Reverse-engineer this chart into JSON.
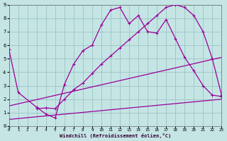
{
  "background_color": "#c5e5e5",
  "grid_color": "#a0c8c8",
  "line_color": "#990099",
  "xlabel": "Windchill (Refroidissement éolien,°C)",
  "xlim": [
    0,
    23
  ],
  "ylim": [
    0,
    9
  ],
  "xticks": [
    0,
    1,
    2,
    3,
    4,
    5,
    6,
    7,
    8,
    9,
    10,
    11,
    12,
    13,
    14,
    15,
    16,
    17,
    18,
    19,
    20,
    21,
    22,
    23
  ],
  "yticks": [
    0,
    1,
    2,
    3,
    4,
    5,
    6,
    7,
    8,
    9
  ],
  "series1_x": [
    0,
    1,
    3,
    4,
    5,
    6,
    7,
    8,
    9,
    10,
    11,
    12,
    13,
    14,
    15,
    16,
    17,
    18,
    19,
    20,
    21,
    22,
    23
  ],
  "series1_y": [
    5.7,
    2.5,
    1.4,
    0.9,
    0.6,
    3.1,
    4.6,
    5.6,
    6.0,
    7.5,
    8.6,
    8.8,
    7.6,
    8.2,
    7.0,
    6.9,
    7.9,
    6.5,
    5.1,
    4.1,
    3.0,
    2.3,
    2.2
  ],
  "series2_x": [
    3,
    4,
    5,
    6,
    7,
    8,
    9,
    10,
    11,
    12,
    13,
    14,
    15,
    16,
    17,
    18,
    19,
    20,
    21,
    22,
    23
  ],
  "series2_y": [
    1.3,
    1.35,
    1.3,
    2.0,
    2.7,
    3.2,
    3.9,
    4.6,
    5.2,
    5.8,
    6.4,
    7.0,
    7.6,
    8.2,
    8.8,
    9.0,
    8.8,
    8.2,
    7.0,
    5.0,
    2.3
  ],
  "series3_x": [
    0,
    23
  ],
  "series3_y": [
    1.5,
    5.1
  ],
  "series4_x": [
    0,
    23
  ],
  "series4_y": [
    0.5,
    2.0
  ]
}
